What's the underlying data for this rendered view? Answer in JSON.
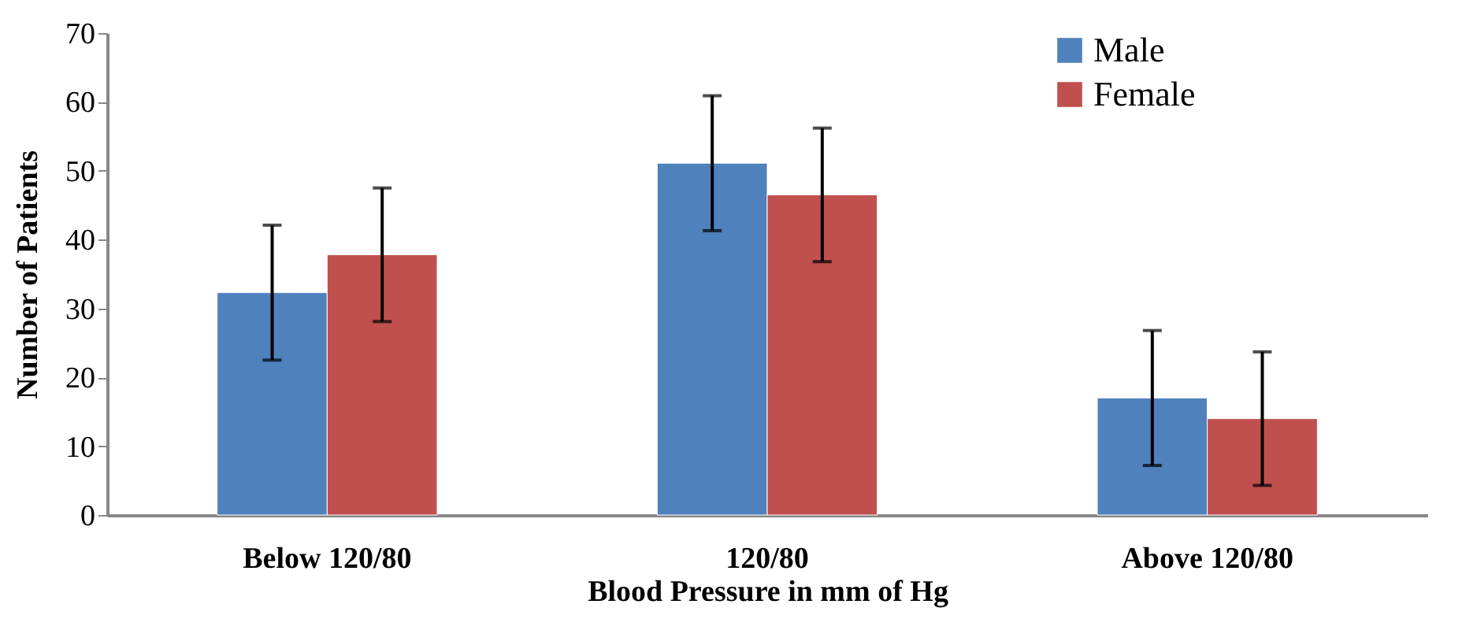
{
  "chart_data": {
    "type": "bar",
    "xlabel": "Blood Pressure in mm of Hg",
    "ylabel": "Number of Patients",
    "categories": [
      "Below 120/80",
      "120/80",
      "Above 120/80"
    ],
    "series": [
      {
        "name": "Male",
        "color": "#4f81bd",
        "values": [
          32.3,
          51.1,
          17.0
        ],
        "errors": [
          9.8,
          9.8,
          9.8
        ]
      },
      {
        "name": "Female",
        "color": "#c0504d",
        "values": [
          37.8,
          46.5,
          14.0
        ],
        "errors": [
          9.7,
          9.7,
          9.7
        ]
      }
    ],
    "ylim": [
      0,
      70
    ],
    "yticks": [
      0,
      10,
      20,
      30,
      40,
      50,
      60,
      70
    ],
    "grid": false,
    "legend": "top right"
  }
}
